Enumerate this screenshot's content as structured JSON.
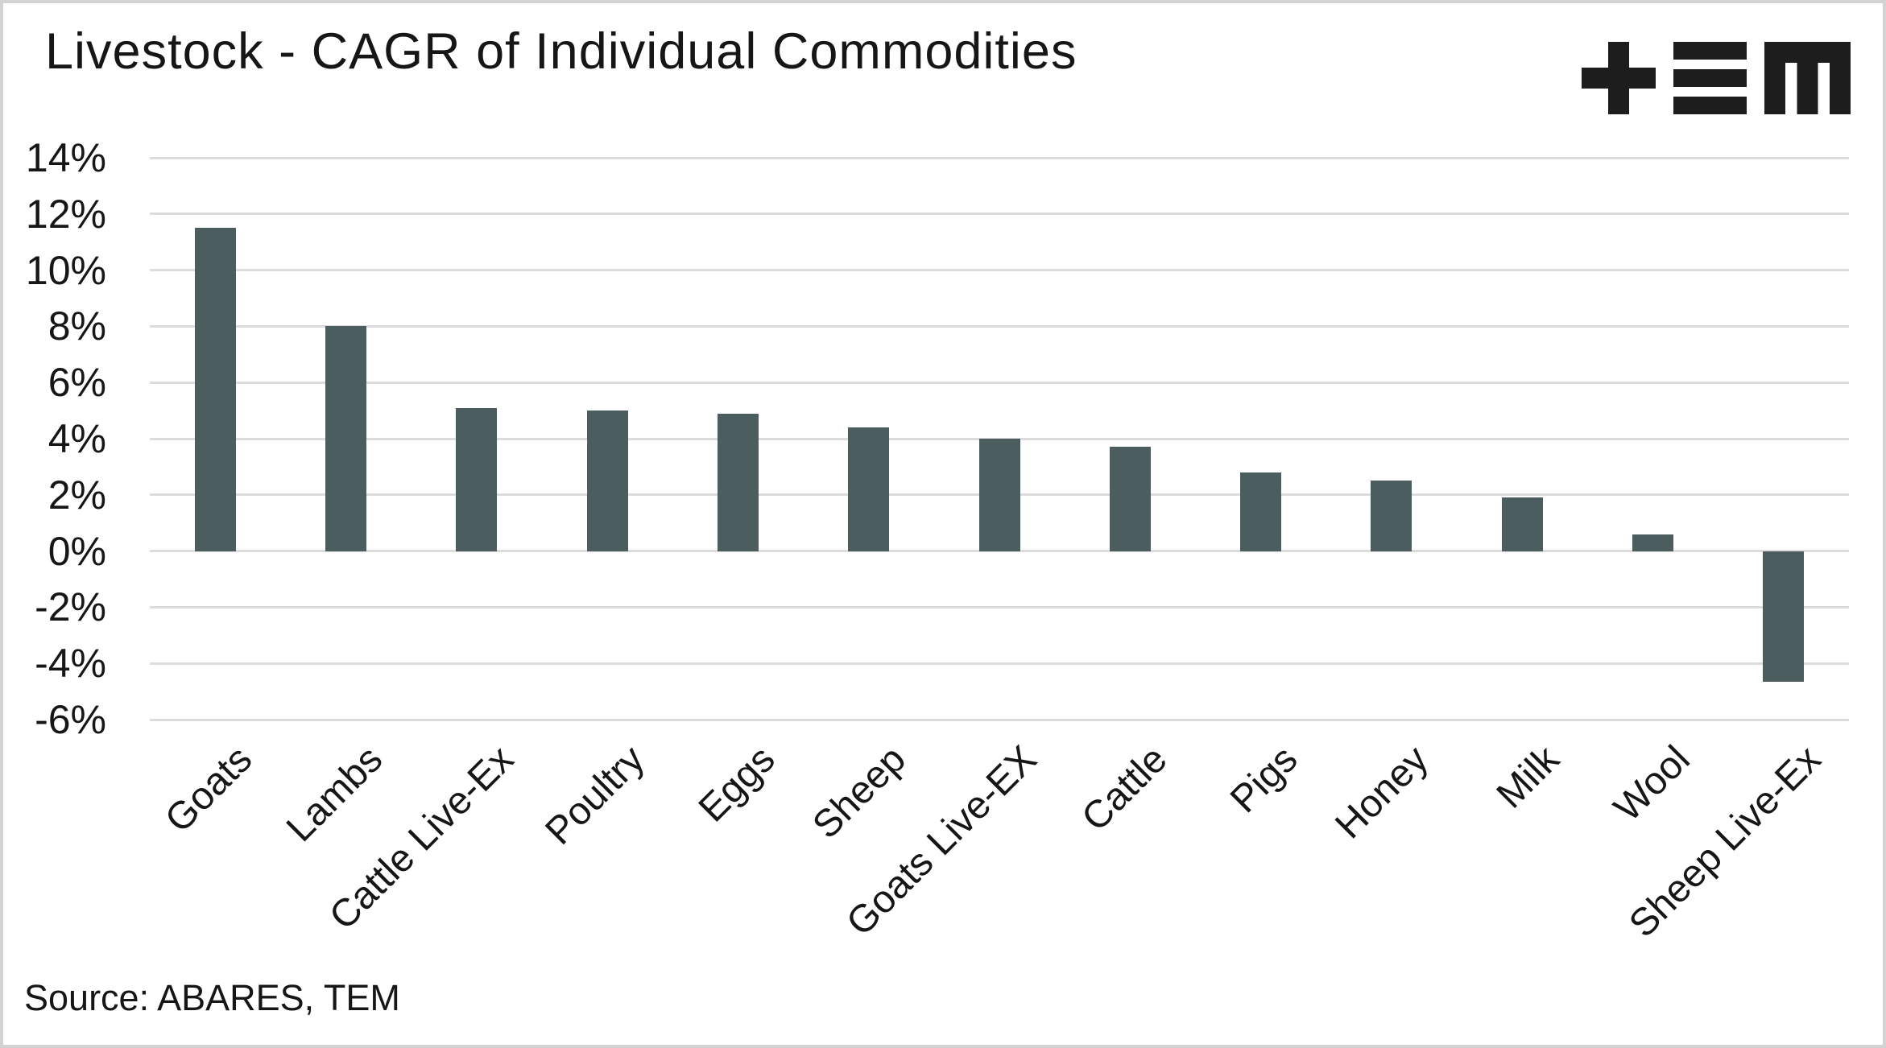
{
  "header": {
    "title": "Livestock - CAGR of Individual Commodities",
    "logo_name": "TEM logo",
    "logo_color": "#1d1d1d"
  },
  "source_note": "Source: ABARES, TEM",
  "chart_data": {
    "type": "bar",
    "title": "Livestock - CAGR of Individual Commodities",
    "categories": [
      "Goats",
      "Lambs",
      "Cattle Live-Ex",
      "Poultry",
      "Eggs",
      "Sheep",
      "Goats Live-EX",
      "Cattle",
      "Pigs",
      "Honey",
      "Milk",
      "Wool",
      "Sheep Live-Ex"
    ],
    "values": [
      11.5,
      8.0,
      5.1,
      5.0,
      4.9,
      4.4,
      4.0,
      3.7,
      2.8,
      2.5,
      1.9,
      0.6,
      -4.65
    ],
    "unit": "%",
    "xlabel": "",
    "ylabel": "",
    "ylim": [
      -6,
      14
    ],
    "ytick_step": 2,
    "yticks": [
      {
        "value": 14,
        "label": "14%"
      },
      {
        "value": 12,
        "label": "12%"
      },
      {
        "value": 10,
        "label": "10%"
      },
      {
        "value": 8,
        "label": "8%"
      },
      {
        "value": 6,
        "label": "6%"
      },
      {
        "value": 4,
        "label": "4%"
      },
      {
        "value": 2,
        "label": "2%"
      },
      {
        "value": 0,
        "label": "0%"
      },
      {
        "value": -2,
        "label": "-2%"
      },
      {
        "value": -4,
        "label": "-4%"
      },
      {
        "value": -6,
        "label": "-6%"
      }
    ],
    "grid": true,
    "legend": false,
    "xtick_rotation_deg": 45,
    "bar_color": "#4c5d60",
    "gridline_color": "#dcdcdc",
    "background": "#ffffff"
  }
}
